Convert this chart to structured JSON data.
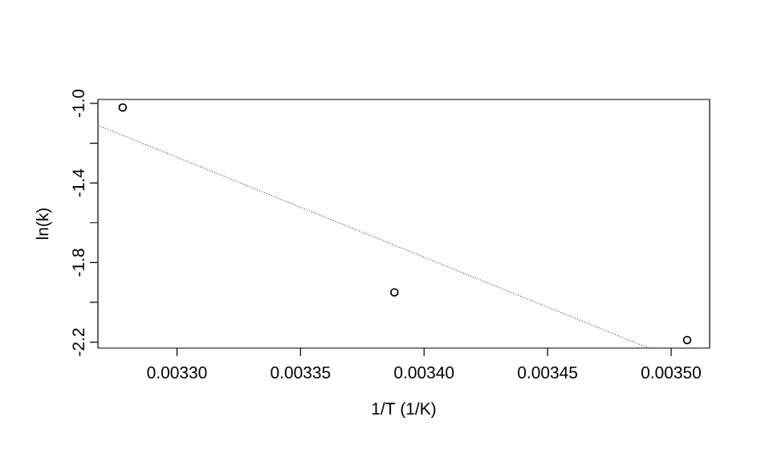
{
  "chart_data": {
    "type": "scatter",
    "xlabel": "1/T (1/K)",
    "ylabel": "ln(k)",
    "series": [
      {
        "color": "#000000",
        "marker": "circle",
        "x": [
          0.003278,
          0.003388,
          0.0035065
        ],
        "values": [
          -1.02,
          -1.95,
          -2.19
        ]
      },
      {
        "type": "line",
        "color": "#555555",
        "line_style": "dotted",
        "marker": "none",
        "x": [
          0.003268,
          0.003491
        ],
        "values": [
          -1.11,
          -2.23
        ]
      }
    ],
    "xlim": [
      0.003268,
      0.0035156
    ],
    "ylim": [
      -2.23,
      -0.98
    ],
    "xticks": [
      {
        "value": 0.0033,
        "label": "0.00330"
      },
      {
        "value": 0.00335,
        "label": "0.00335"
      },
      {
        "value": 0.0034,
        "label": "0.00340"
      },
      {
        "value": 0.00345,
        "label": "0.00345"
      },
      {
        "value": 0.0035,
        "label": "0.00350"
      }
    ],
    "yticks": [
      {
        "value": -1.0,
        "label": "-1.0"
      },
      {
        "value": -1.2,
        "label": null
      },
      {
        "value": -1.4,
        "label": "-1.4"
      },
      {
        "value": -1.6,
        "label": null
      },
      {
        "value": -1.8,
        "label": "-1.8"
      },
      {
        "value": -2.0,
        "label": null
      },
      {
        "value": -2.2,
        "label": "-2.2"
      }
    ],
    "grid": false
  }
}
